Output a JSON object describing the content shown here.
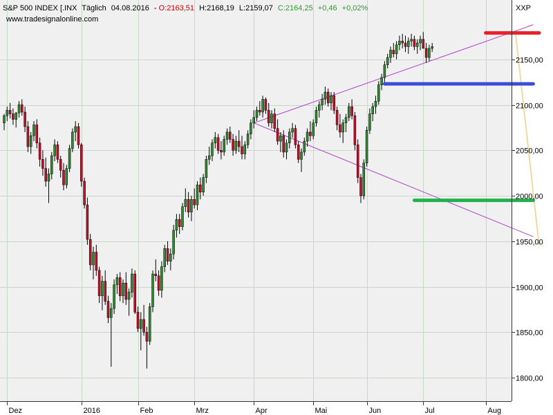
{
  "header": {
    "instrument": "S&P 500 INDEX [.INX",
    "interval": "Täglich",
    "date": "04.08.2016",
    "open": "O:2163,51",
    "high": "H:2168,19",
    "low": "L:2159,07",
    "close": "C:2164,25",
    "change": "+0,46",
    "change_pct": "+0,02%",
    "source": "www.tradesignalonline.com",
    "symbol": "XXP"
  },
  "colors": {
    "up": "#2e8b2e",
    "down": "#c0102a",
    "close_text": "#2e9b2e",
    "open_text": "#cc0000",
    "resistance": "#e8202a",
    "support_upper": "#3a4fd8",
    "support_lower": "#22b14c",
    "wedge": "#b040c8",
    "projection": "#f0d8a0",
    "grid": "#c8d8c8"
  },
  "chart_data": {
    "type": "candlestick",
    "ylim": [
      1790,
      2190
    ],
    "yticks": [
      1800,
      1850,
      1900,
      1950,
      2000,
      2050,
      2100,
      2150
    ],
    "ytick_labels": [
      "1800,00",
      "1850,00",
      "1900,00",
      "1950,00",
      "2000,00",
      "2050,00",
      "2100,00",
      "2150,00"
    ],
    "x_labels": [
      "Dez",
      "2016",
      "Feb",
      "Mrz",
      "Apr",
      "Mai",
      "Jun",
      "Jul",
      "Aug"
    ],
    "x_label_index": [
      1,
      26,
      45,
      64,
      84,
      104,
      122,
      141,
      162
    ],
    "candles": [
      [
        2080,
        2090,
        2072,
        2088
      ],
      [
        2088,
        2098,
        2082,
        2094
      ],
      [
        2094,
        2102,
        2085,
        2090
      ],
      [
        2090,
        2096,
        2078,
        2084
      ],
      [
        2084,
        2092,
        2075,
        2091
      ],
      [
        2091,
        2104,
        2086,
        2100
      ],
      [
        2100,
        2106,
        2088,
        2092
      ],
      [
        2092,
        2098,
        2070,
        2076
      ],
      [
        2076,
        2082,
        2048,
        2054
      ],
      [
        2054,
        2070,
        2046,
        2066
      ],
      [
        2066,
        2082,
        2060,
        2078
      ],
      [
        2078,
        2084,
        2052,
        2058
      ],
      [
        2058,
        2064,
        2032,
        2040
      ],
      [
        2040,
        2050,
        2022,
        2030
      ],
      [
        2030,
        2042,
        2010,
        2016
      ],
      [
        2016,
        2030,
        1992,
        2024
      ],
      [
        2024,
        2048,
        2018,
        2044
      ],
      [
        2044,
        2062,
        2038,
        2056
      ],
      [
        2056,
        2060,
        2036,
        2040
      ],
      [
        2040,
        2044,
        2020,
        2028
      ],
      [
        2028,
        2036,
        2006,
        2012
      ],
      [
        2012,
        2034,
        2008,
        2030
      ],
      [
        2030,
        2056,
        2026,
        2052
      ],
      [
        2052,
        2074,
        2048,
        2070
      ],
      [
        2070,
        2082,
        2060,
        2076
      ],
      [
        2076,
        2080,
        2052,
        2056
      ],
      [
        2056,
        2058,
        2010,
        2016
      ],
      [
        2016,
        2020,
        1986,
        1990
      ],
      [
        1990,
        1998,
        1946,
        1952
      ],
      [
        1952,
        1958,
        1918,
        1924
      ],
      [
        1924,
        1944,
        1908,
        1938
      ],
      [
        1938,
        1946,
        1912,
        1918
      ],
      [
        1918,
        1922,
        1882,
        1890
      ],
      [
        1890,
        1912,
        1874,
        1906
      ],
      [
        1906,
        1918,
        1880,
        1884
      ],
      [
        1884,
        1890,
        1860,
        1866
      ],
      [
        1866,
        1882,
        1812,
        1876
      ],
      [
        1876,
        1908,
        1870,
        1902
      ],
      [
        1902,
        1914,
        1892,
        1910
      ],
      [
        1910,
        1916,
        1884,
        1890
      ],
      [
        1890,
        1908,
        1882,
        1904
      ],
      [
        1904,
        1916,
        1880,
        1886
      ],
      [
        1886,
        1898,
        1868,
        1894
      ],
      [
        1894,
        1920,
        1888,
        1914
      ],
      [
        1914,
        1918,
        1870,
        1872
      ],
      [
        1872,
        1878,
        1850,
        1854
      ],
      [
        1854,
        1872,
        1830,
        1864
      ],
      [
        1864,
        1880,
        1846,
        1850
      ],
      [
        1850,
        1856,
        1810,
        1840
      ],
      [
        1840,
        1882,
        1836,
        1878
      ],
      [
        1878,
        1918,
        1872,
        1914
      ],
      [
        1914,
        1930,
        1906,
        1912
      ],
      [
        1912,
        1918,
        1890,
        1896
      ],
      [
        1896,
        1928,
        1888,
        1922
      ],
      [
        1922,
        1946,
        1916,
        1942
      ],
      [
        1942,
        1950,
        1924,
        1928
      ],
      [
        1928,
        1942,
        1918,
        1936
      ],
      [
        1936,
        1968,
        1930,
        1962
      ],
      [
        1962,
        1980,
        1954,
        1974
      ],
      [
        1974,
        1980,
        1958,
        1966
      ],
      [
        1966,
        1992,
        1962,
        1988
      ],
      [
        1988,
        2008,
        1982,
        1996
      ],
      [
        1996,
        2004,
        1976,
        1982
      ],
      [
        1982,
        2000,
        1972,
        1996
      ],
      [
        1996,
        2008,
        1986,
        1990
      ],
      [
        1990,
        2016,
        1984,
        2012
      ],
      [
        2012,
        2020,
        1996,
        2004
      ],
      [
        2004,
        2024,
        2000,
        2020
      ],
      [
        2020,
        2044,
        2014,
        2040
      ],
      [
        2040,
        2054,
        2034,
        2044
      ],
      [
        2044,
        2062,
        2038,
        2058
      ],
      [
        2058,
        2070,
        2052,
        2064
      ],
      [
        2064,
        2068,
        2046,
        2050
      ],
      [
        2050,
        2060,
        2040,
        2048
      ],
      [
        2048,
        2066,
        2044,
        2062
      ],
      [
        2062,
        2074,
        2056,
        2070
      ],
      [
        2070,
        2076,
        2058,
        2062
      ],
      [
        2062,
        2068,
        2044,
        2050
      ],
      [
        2050,
        2066,
        2046,
        2060
      ],
      [
        2060,
        2072,
        2048,
        2054
      ],
      [
        2054,
        2066,
        2040,
        2046
      ],
      [
        2046,
        2060,
        2040,
        2056
      ],
      [
        2056,
        2072,
        2052,
        2068
      ],
      [
        2068,
        2084,
        2062,
        2080
      ],
      [
        2080,
        2094,
        2074,
        2086
      ],
      [
        2086,
        2098,
        2082,
        2094
      ],
      [
        2094,
        2104,
        2088,
        2092
      ],
      [
        2092,
        2110,
        2086,
        2106
      ],
      [
        2106,
        2108,
        2090,
        2094
      ],
      [
        2094,
        2102,
        2076,
        2080
      ],
      [
        2080,
        2094,
        2074,
        2090
      ],
      [
        2090,
        2096,
        2070,
        2074
      ],
      [
        2074,
        2084,
        2056,
        2060
      ],
      [
        2060,
        2070,
        2048,
        2066
      ],
      [
        2066,
        2072,
        2042,
        2048
      ],
      [
        2048,
        2062,
        2040,
        2058
      ],
      [
        2058,
        2074,
        2052,
        2070
      ],
      [
        2070,
        2080,
        2064,
        2074
      ],
      [
        2074,
        2078,
        2052,
        2056
      ],
      [
        2056,
        2060,
        2036,
        2040
      ],
      [
        2040,
        2052,
        2026,
        2048
      ],
      [
        2048,
        2064,
        2044,
        2060
      ],
      [
        2060,
        2074,
        2054,
        2070
      ],
      [
        2070,
        2082,
        2060,
        2066
      ],
      [
        2066,
        2084,
        2062,
        2080
      ],
      [
        2080,
        2098,
        2076,
        2094
      ],
      [
        2094,
        2104,
        2086,
        2100
      ],
      [
        2100,
        2112,
        2094,
        2106
      ],
      [
        2106,
        2120,
        2100,
        2114
      ],
      [
        2114,
        2118,
        2098,
        2102
      ],
      [
        2102,
        2114,
        2094,
        2110
      ],
      [
        2110,
        2114,
        2090,
        2094
      ],
      [
        2094,
        2098,
        2072,
        2078
      ],
      [
        2078,
        2090,
        2064,
        2070
      ],
      [
        2070,
        2084,
        2058,
        2080
      ],
      [
        2080,
        2090,
        2070,
        2086
      ],
      [
        2086,
        2102,
        2082,
        2098
      ],
      [
        2098,
        2106,
        2084,
        2088
      ],
      [
        2088,
        2092,
        2050,
        2056
      ],
      [
        2056,
        2062,
        2014,
        2020
      ],
      [
        2020,
        2024,
        1992,
        2000
      ],
      [
        2000,
        2040,
        1996,
        2036
      ],
      [
        2036,
        2076,
        2032,
        2072
      ],
      [
        2072,
        2096,
        2068,
        2090
      ],
      [
        2090,
        2102,
        2082,
        2098
      ],
      [
        2098,
        2110,
        2090,
        2104
      ],
      [
        2104,
        2126,
        2100,
        2122
      ],
      [
        2122,
        2134,
        2116,
        2130
      ],
      [
        2130,
        2148,
        2124,
        2144
      ],
      [
        2144,
        2156,
        2140,
        2152
      ],
      [
        2152,
        2164,
        2146,
        2160
      ],
      [
        2160,
        2168,
        2152,
        2156
      ],
      [
        2156,
        2170,
        2150,
        2166
      ],
      [
        2166,
        2176,
        2160,
        2170
      ],
      [
        2170,
        2178,
        2162,
        2168
      ],
      [
        2168,
        2176,
        2158,
        2164
      ],
      [
        2164,
        2174,
        2156,
        2170
      ],
      [
        2170,
        2178,
        2164,
        2172
      ],
      [
        2172,
        2176,
        2160,
        2164
      ],
      [
        2164,
        2172,
        2156,
        2168
      ],
      [
        2168,
        2176,
        2160,
        2172
      ],
      [
        2172,
        2180,
        2166,
        2162
      ],
      [
        2162,
        2168,
        2146,
        2152
      ],
      [
        2152,
        2166,
        2148,
        2162
      ],
      [
        2162,
        2168,
        2158,
        2164
      ]
    ],
    "wedge_upper": [
      [
        84,
        2080
      ],
      [
        178,
        2188
      ]
    ],
    "wedge_lower": [
      [
        84,
        2080
      ],
      [
        178,
        1955
      ]
    ],
    "resistance": {
      "price": 2179,
      "from": 162,
      "to": 180
    },
    "support_upper": {
      "price": 2123,
      "from": 128,
      "to": 178
    },
    "support_lower": {
      "price": 1995,
      "from": 138,
      "to": 178
    },
    "projection": [
      [
        172,
        2180
      ],
      [
        180,
        1945
      ]
    ]
  }
}
